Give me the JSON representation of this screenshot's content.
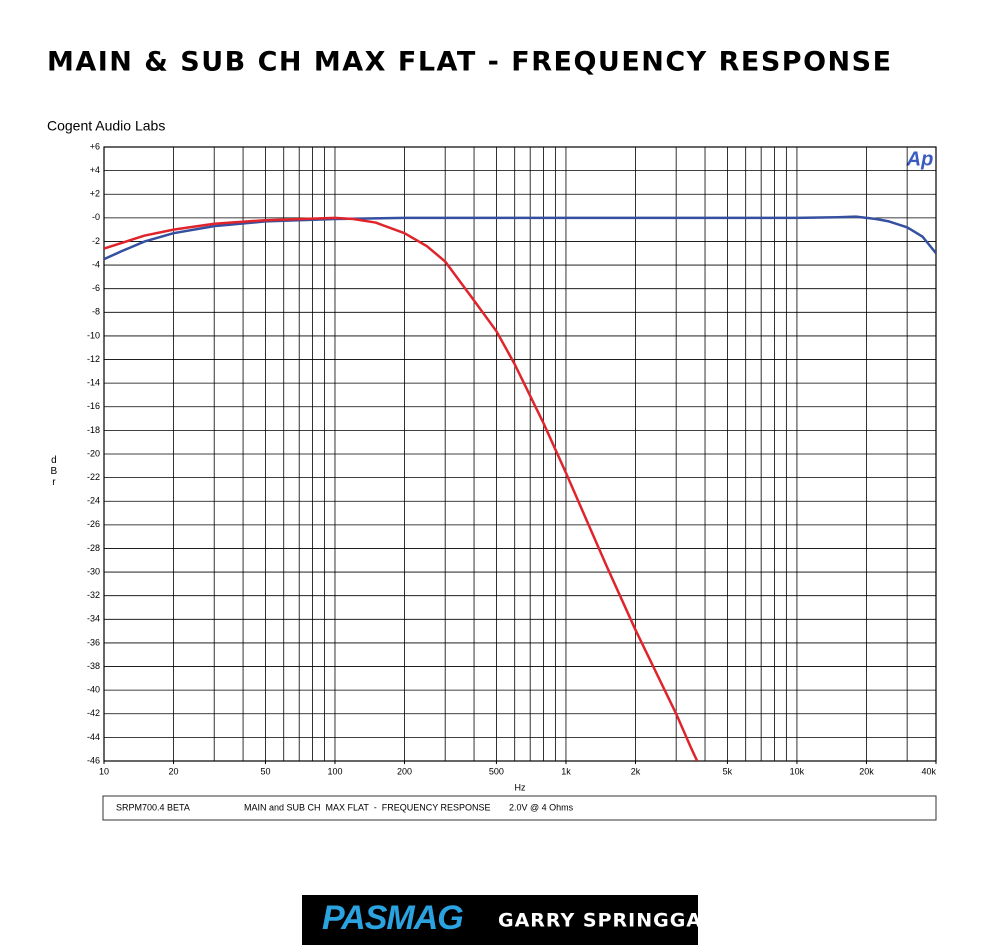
{
  "chart_data": {
    "type": "line",
    "title": "MAIN & SUB CH MAX FLAT - FREQUENCY RESPONSE",
    "subtitle": "Cogent Audio Labs",
    "y_label": "dBr",
    "x_label": "Hz",
    "logo": "Ap",
    "log_x": true,
    "grid": true,
    "xlim": [
      10,
      40000
    ],
    "ylim": [
      -46,
      6
    ],
    "xticks": [
      10,
      20,
      50,
      100,
      200,
      500,
      {
        "value": 1000,
        "label": "1k"
      },
      {
        "value": 2000,
        "label": "2k"
      },
      {
        "value": 5000,
        "label": "5k"
      },
      {
        "value": 10000,
        "label": "10k"
      },
      {
        "value": 20000,
        "label": "20k"
      },
      {
        "value": 40000,
        "label": "40k"
      }
    ],
    "xgrid": [
      20,
      30,
      40,
      50,
      60,
      70,
      80,
      90,
      100,
      200,
      300,
      400,
      500,
      600,
      700,
      800,
      900,
      1000,
      2000,
      3000,
      4000,
      5000,
      6000,
      7000,
      8000,
      9000,
      10000,
      20000,
      30000
    ],
    "yticks": [
      {
        "value": 6,
        "label": "+6"
      },
      {
        "value": 4,
        "label": "+4"
      },
      {
        "value": 2,
        "label": "+2"
      },
      {
        "value": 0,
        "label": "-0"
      },
      -2,
      -4,
      -6,
      -8,
      -10,
      -12,
      -14,
      -16,
      -18,
      -20,
      -22,
      -24,
      -26,
      -28,
      -30,
      -32,
      -34,
      -36,
      -38,
      -40,
      -42,
      -44,
      -46
    ],
    "series": [
      {
        "color": "#3550a0",
        "x": [
          10,
          12,
          15,
          20,
          30,
          50,
          100,
          200,
          500,
          1000,
          5000,
          10000,
          15000,
          18000,
          22000,
          25000,
          30000,
          35000,
          40000
        ],
        "values": [
          -3.5,
          -2.8,
          -2.0,
          -1.3,
          -0.7,
          -0.3,
          -0.1,
          0,
          0,
          0,
          0,
          0,
          0.05,
          0.1,
          -0.1,
          -0.3,
          -0.8,
          -1.6,
          -3.0
        ]
      },
      {
        "color": "#e0242c",
        "x": [
          10,
          15,
          20,
          30,
          50,
          100,
          120,
          150,
          200,
          250,
          300,
          400,
          500,
          600,
          800,
          1000,
          1500,
          2000,
          3000,
          3500,
          3700
        ],
        "values": [
          -2.6,
          -1.5,
          -1.0,
          -0.5,
          -0.2,
          0,
          -0.1,
          -0.4,
          -1.3,
          -2.4,
          -3.7,
          -7.0,
          -9.6,
          -12.4,
          -17.4,
          -21.6,
          -29.5,
          -34.9,
          -42.0,
          -45.0,
          -46.0
        ]
      }
    ],
    "footer": {
      "model": "SRPM700.4 BETA",
      "description": "MAIN and SUB CH  MAX FLAT  -  FREQUENCY RESPONSE",
      "condition": "2.0V @ 4 Ohms"
    },
    "brand": {
      "logo": "PASMAG",
      "author": "GARRY SPRINGGAY"
    }
  }
}
